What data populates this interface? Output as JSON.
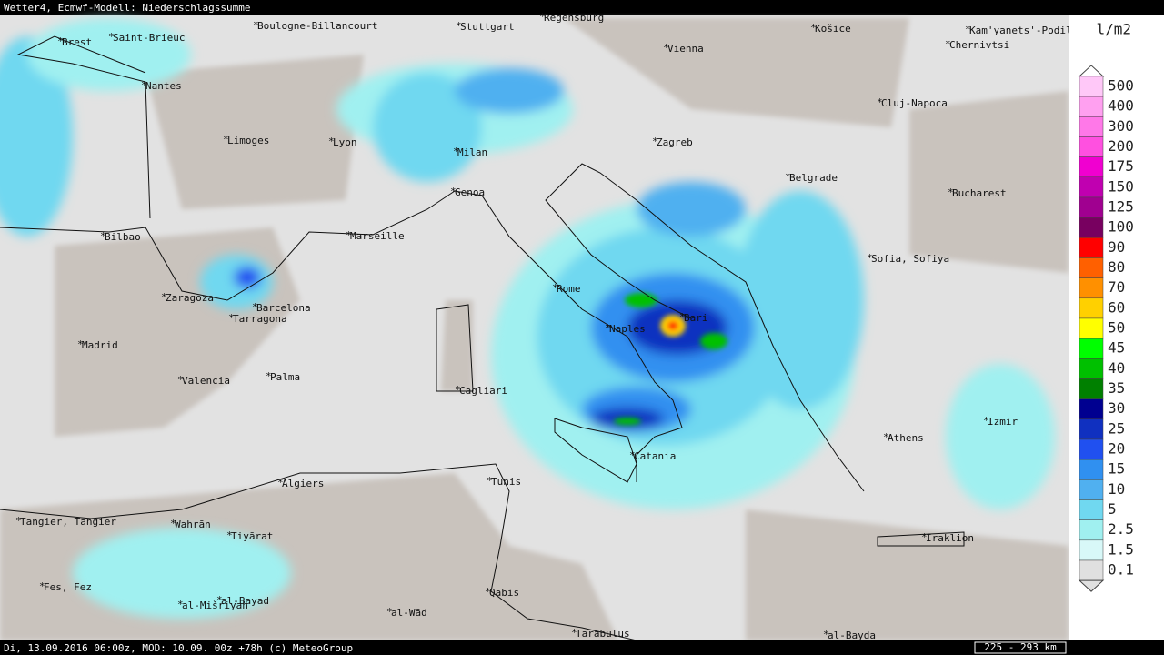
{
  "header": {
    "title": "Wetter4, Ecmwf-Modell: Niederschlagssumme"
  },
  "footer": {
    "text": "Di, 13.09.2016 06:00z, MOD: 10.09. 00z +78h (c) MeteoGroup",
    "scale": "225 - 293 km"
  },
  "legend": {
    "unit": "l/m2",
    "items": [
      {
        "label": 500,
        "color": "#ffc8f8"
      },
      {
        "label": 400,
        "color": "#ffa0f0"
      },
      {
        "label": 300,
        "color": "#ff78e8"
      },
      {
        "label": 200,
        "color": "#ff50e0"
      },
      {
        "label": 175,
        "color": "#f000d0"
      },
      {
        "label": 150,
        "color": "#c000b0"
      },
      {
        "label": 125,
        "color": "#a00090"
      },
      {
        "label": 100,
        "color": "#780060"
      },
      {
        "label": 90,
        "color": "#ff0000"
      },
      {
        "label": 80,
        "color": "#ff6000"
      },
      {
        "label": 70,
        "color": "#ff9000"
      },
      {
        "label": 60,
        "color": "#ffd000"
      },
      {
        "label": 50,
        "color": "#ffff00"
      },
      {
        "label": 45,
        "color": "#00ff00"
      },
      {
        "label": 40,
        "color": "#00c000"
      },
      {
        "label": 35,
        "color": "#008000"
      },
      {
        "label": 30,
        "color": "#000090"
      },
      {
        "label": 25,
        "color": "#1030c0"
      },
      {
        "label": 20,
        "color": "#2050f0"
      },
      {
        "label": 15,
        "color": "#3090f0"
      },
      {
        "label": 10,
        "color": "#50b0f0"
      },
      {
        "label": 5,
        "color": "#70d8f0"
      },
      {
        "label": 2.5,
        "color": "#a0f0f0"
      },
      {
        "label": 1.5,
        "color": "#d8f8f8"
      },
      {
        "label": 0.1,
        "color": "#e0e0e0"
      }
    ]
  },
  "cities": [
    "Brest",
    "Saint-Brieuc",
    "Boulogne-Billancourt",
    "Stuttgart",
    "Regensburg",
    "Košice",
    "Kam'yanets'-Podil's'kyy",
    "Chernivtsi",
    "Vienna",
    "Nantes",
    "Cluj-Napoca",
    "Limoges",
    "Lyon",
    "Milan",
    "Zagreb",
    "Belgrade",
    "Bucharest",
    "Genoa",
    "Bilbao",
    "Marseille",
    "Sofia, Sofiya",
    "Rome",
    "Bari",
    "Zaragoza",
    "Barcelona",
    "Tarragona",
    "Naples",
    "Madrid",
    "Palma",
    "Valencia",
    "Cagliari",
    "Izmir",
    "Athens",
    "Catania",
    "Tunis",
    "Algiers",
    "Tangier, Tangier",
    "Wahrān",
    "Tiyārat",
    "Iraklion",
    "Fes, Fez",
    "al-Bayad",
    "al-Mišriyah",
    "Qabis",
    "al-Wād",
    "Tarābulus",
    "al-Bayda"
  ]
}
